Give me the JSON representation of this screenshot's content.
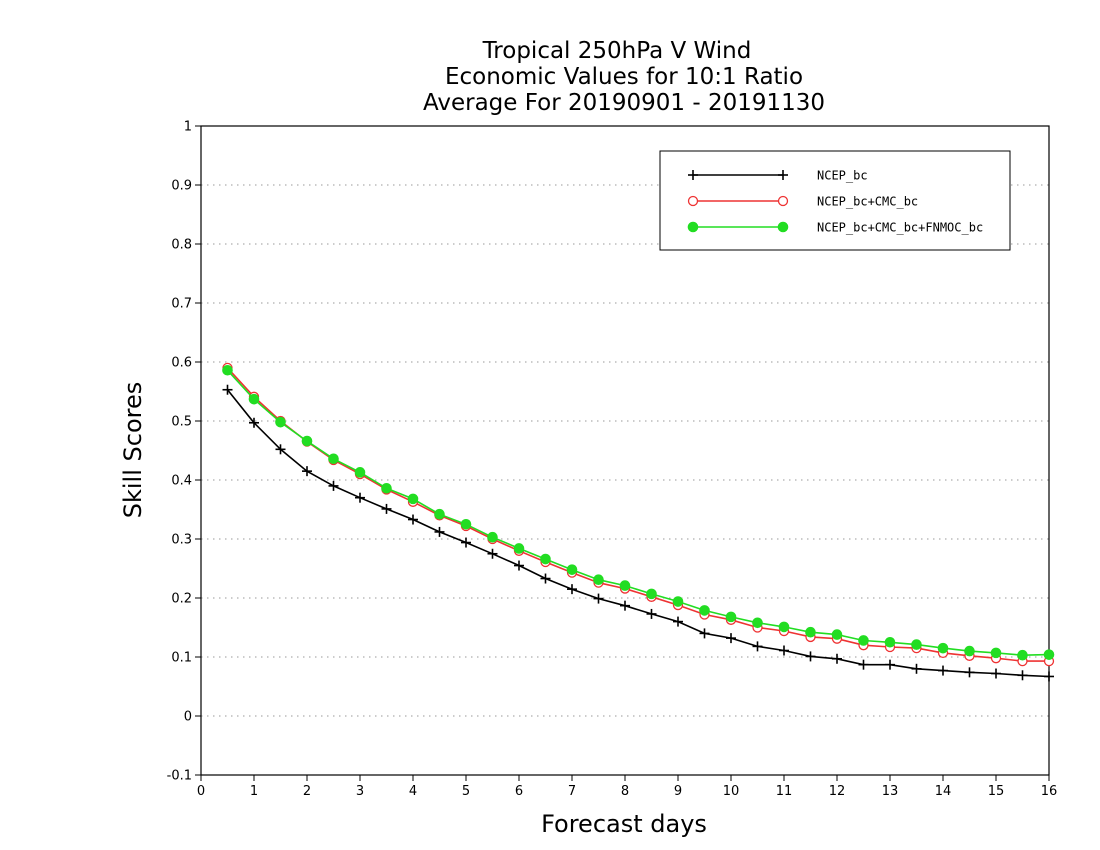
{
  "chart_data": {
    "type": "line",
    "title": [
      "Tropical 250hPa V Wind",
      "Economic Values for 10:1 Ratio",
      "Average For 20190901 - 20191130"
    ],
    "xlabel": "Forecast days",
    "ylabel": "Skill Scores",
    "xlim": [
      0,
      16
    ],
    "ylim": [
      -0.1,
      1
    ],
    "x_ticks": [
      "0",
      "1",
      "2",
      "3",
      "4",
      "5",
      "6",
      "7",
      "8",
      "9",
      "10",
      "11",
      "12",
      "13",
      "14",
      "15",
      "16"
    ],
    "y_ticks": [
      "-0.1",
      "0",
      "0.1",
      "0.2",
      "0.3",
      "0.4",
      "0.5",
      "0.6",
      "0.7",
      "0.8",
      "0.9",
      "1"
    ],
    "grid": "horizontal dotted",
    "legend_position": "top-right",
    "x": [
      0.5,
      1,
      1.5,
      2,
      2.5,
      3,
      3.5,
      4,
      4.5,
      5,
      5.5,
      6,
      6.5,
      7,
      7.5,
      8,
      8.5,
      9,
      9.5,
      10,
      10.5,
      11,
      11.5,
      12,
      12.5,
      13,
      13.5,
      14,
      14.5,
      15,
      15.5,
      16
    ],
    "series": [
      {
        "name": "NCEP_bc",
        "color": "#000000",
        "marker": "plus",
        "values": [
          0.553,
          0.497,
          0.452,
          0.415,
          0.39,
          0.37,
          0.351,
          0.333,
          0.312,
          0.294,
          0.275,
          0.255,
          0.233,
          0.215,
          0.199,
          0.187,
          0.173,
          0.16,
          0.14,
          0.132,
          0.118,
          0.111,
          0.101,
          0.097,
          0.087,
          0.087,
          0.08,
          0.077,
          0.074,
          0.072,
          0.069,
          0.067
        ]
      },
      {
        "name": "NCEP_bc+CMC_bc",
        "color": "#ee3333",
        "marker": "open-circle",
        "values": [
          0.59,
          0.541,
          0.5,
          0.465,
          0.434,
          0.41,
          0.384,
          0.363,
          0.34,
          0.322,
          0.3,
          0.28,
          0.261,
          0.243,
          0.226,
          0.216,
          0.202,
          0.188,
          0.172,
          0.163,
          0.15,
          0.144,
          0.134,
          0.131,
          0.12,
          0.117,
          0.115,
          0.107,
          0.102,
          0.098,
          0.093,
          0.093
        ]
      },
      {
        "name": "NCEP_bc+CMC_bc+FNMOC_bc",
        "color": "#22dd22",
        "marker": "filled-circle",
        "values": [
          0.586,
          0.537,
          0.498,
          0.466,
          0.436,
          0.413,
          0.386,
          0.368,
          0.342,
          0.325,
          0.303,
          0.284,
          0.266,
          0.248,
          0.231,
          0.221,
          0.207,
          0.194,
          0.179,
          0.168,
          0.158,
          0.151,
          0.142,
          0.138,
          0.128,
          0.125,
          0.121,
          0.115,
          0.11,
          0.107,
          0.103,
          0.104
        ]
      }
    ]
  }
}
